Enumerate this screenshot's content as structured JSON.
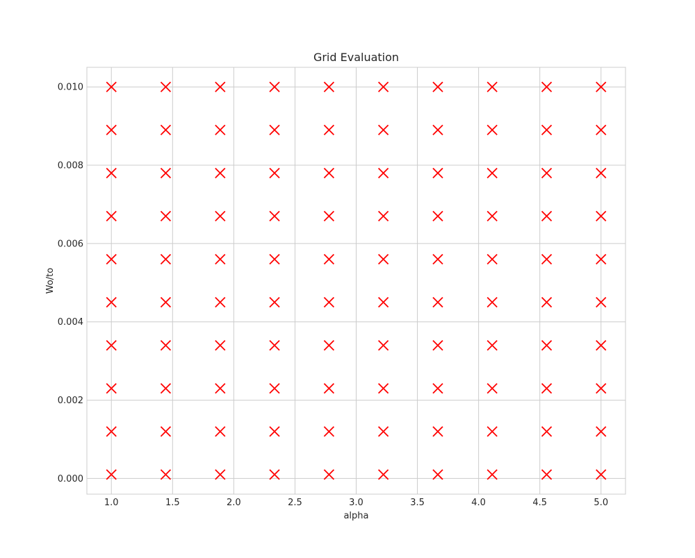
{
  "chart_data": {
    "type": "scatter",
    "title": "Grid Evaluation",
    "xlabel": "alpha",
    "ylabel": "Wo/to",
    "xlim": [
      0.8,
      5.2
    ],
    "ylim": [
      -0.0004,
      0.0105
    ],
    "xticks": [
      "1.0",
      "1.5",
      "2.0",
      "2.5",
      "3.0",
      "3.5",
      "4.0",
      "4.5",
      "5.0"
    ],
    "yticks": [
      "0.000",
      "0.002",
      "0.004",
      "0.006",
      "0.008",
      "0.010"
    ],
    "grid": true,
    "marker": "x",
    "marker_color": "#ff0000",
    "grid_color": "#cccccc",
    "x_values": [
      1.0,
      1.444,
      1.889,
      2.333,
      2.778,
      3.222,
      3.667,
      4.111,
      4.556,
      5.0
    ],
    "y_values": [
      0.0001,
      0.0012,
      0.0023,
      0.0034,
      0.0045,
      0.0056,
      0.0067,
      0.0078,
      0.0089,
      0.01
    ]
  }
}
